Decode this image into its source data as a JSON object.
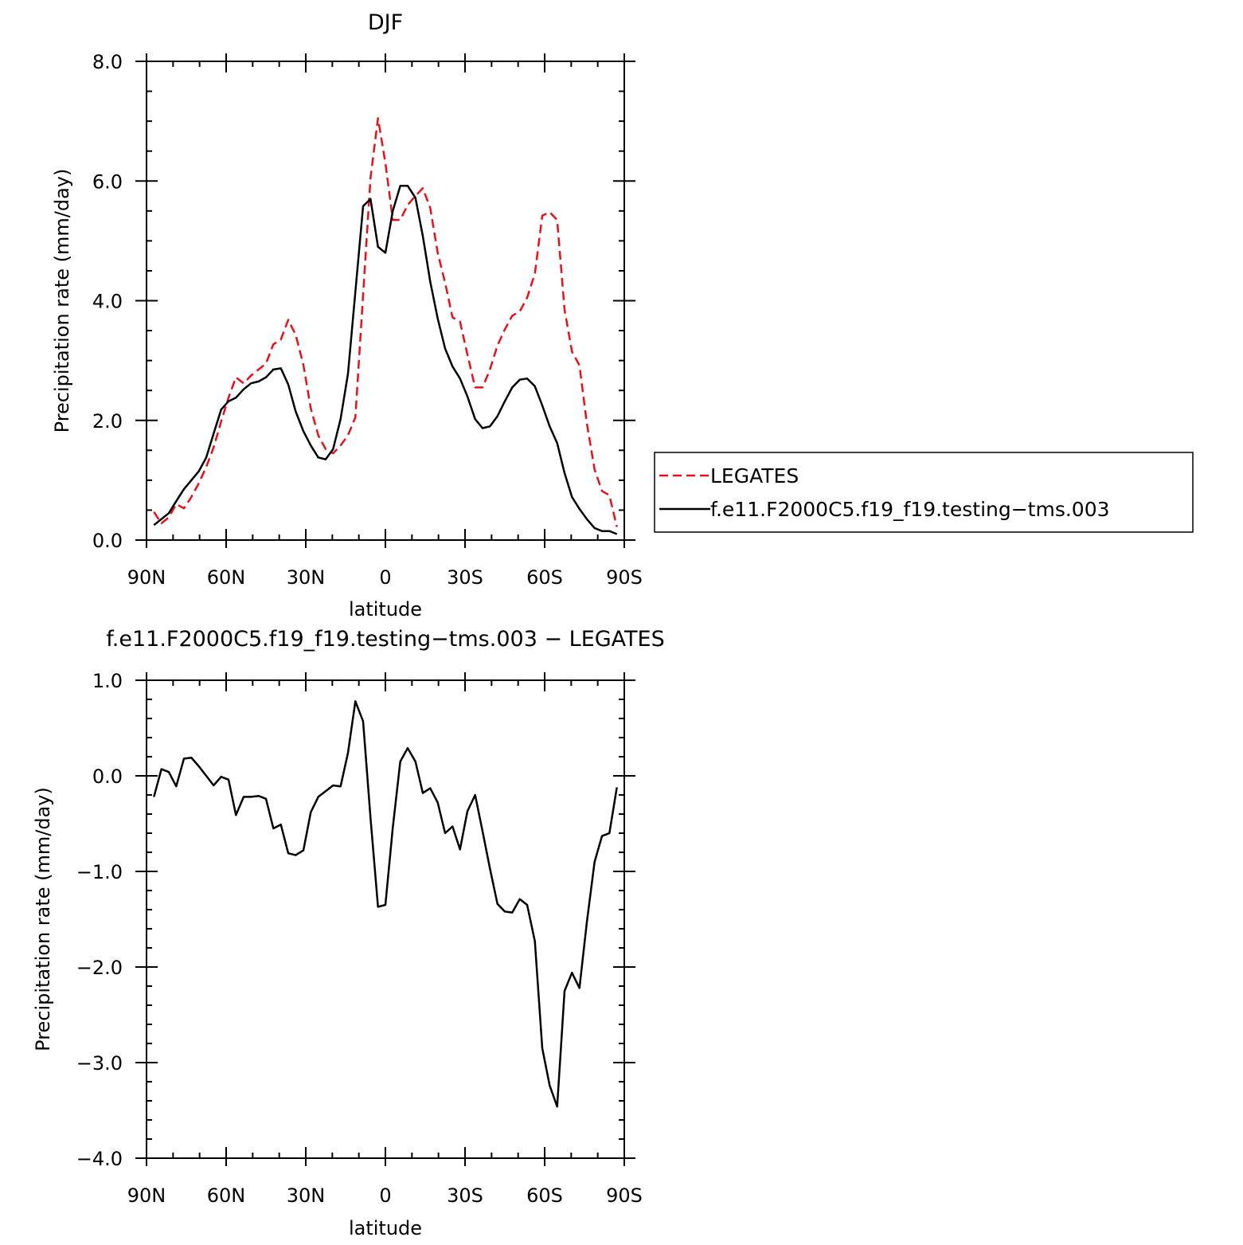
{
  "chart_data": [
    {
      "type": "line",
      "title": "DJF",
      "xlabel": "latitude",
      "ylabel": "Precipitation rate (mm/day)",
      "xlim": [
        -90,
        90
      ],
      "ylim": [
        0,
        8
      ],
      "x_ticks": [
        {
          "value": -90,
          "label": "90N"
        },
        {
          "value": -60,
          "label": "60N"
        },
        {
          "value": -30,
          "label": "30N"
        },
        {
          "value": 0,
          "label": "0"
        },
        {
          "value": 30,
          "label": "30S"
        },
        {
          "value": 60,
          "label": "60S"
        },
        {
          "value": 90,
          "label": "90S"
        }
      ],
      "y_ticks": [
        {
          "value": 0,
          "label": "0.0"
        },
        {
          "value": 2,
          "label": "2.0"
        },
        {
          "value": 4,
          "label": "4.0"
        },
        {
          "value": 6,
          "label": "6.0"
        },
        {
          "value": 8,
          "label": "8.0"
        }
      ],
      "grid": false,
      "legend": {
        "position": "right",
        "box": true
      },
      "series": [
        {
          "name": "LEGATES",
          "color": "#e8101a",
          "dash": "dashed",
          "x": [
            -87.2,
            -84.4,
            -81.6,
            -78.8,
            -75.9,
            -73.1,
            -70.3,
            -67.5,
            -64.7,
            -61.9,
            -59.1,
            -56.3,
            -53.4,
            -50.6,
            -47.8,
            -45.0,
            -42.2,
            -39.4,
            -36.6,
            -33.8,
            -30.9,
            -28.1,
            -25.3,
            -22.5,
            -19.7,
            -16.9,
            -14.1,
            -11.3,
            -8.4,
            -5.6,
            -2.8,
            0,
            2.8,
            5.6,
            8.4,
            11.3,
            14.1,
            16.9,
            19.7,
            22.5,
            25.3,
            28.1,
            30.9,
            33.8,
            36.6,
            39.4,
            42.2,
            45.0,
            47.8,
            50.6,
            53.4,
            56.3,
            59.1,
            61.9,
            64.7,
            67.5,
            70.3,
            73.1,
            75.9,
            78.8,
            81.6,
            84.4,
            87.2
          ],
          "values": [
            0.47,
            0.28,
            0.38,
            0.6,
            0.53,
            0.72,
            0.95,
            1.22,
            1.55,
            1.98,
            2.38,
            2.72,
            2.62,
            2.75,
            2.85,
            2.95,
            3.27,
            3.35,
            3.68,
            3.43,
            2.93,
            2.2,
            1.75,
            1.52,
            1.45,
            1.58,
            1.75,
            2.05,
            4.1,
            6.05,
            7.05,
            6.3,
            5.35,
            5.35,
            5.6,
            5.75,
            5.88,
            5.55,
            4.8,
            4.3,
            3.72,
            3.65,
            3.1,
            2.55,
            2.55,
            2.85,
            3.25,
            3.52,
            3.75,
            3.82,
            4.05,
            4.45,
            5.42,
            5.48,
            5.35,
            3.85,
            3.15,
            2.92,
            1.95,
            1.18,
            0.82,
            0.75,
            0.22
          ]
        },
        {
          "name": "f.e11.F2000C5.f19_f19.testing−tms.003",
          "color": "#000000",
          "dash": "solid",
          "x": [
            -87.2,
            -84.4,
            -81.6,
            -78.8,
            -75.9,
            -73.1,
            -70.3,
            -67.5,
            -64.7,
            -61.9,
            -59.1,
            -56.3,
            -53.4,
            -50.6,
            -47.8,
            -45.0,
            -42.2,
            -39.4,
            -36.6,
            -33.8,
            -30.9,
            -28.1,
            -25.3,
            -22.5,
            -19.7,
            -16.9,
            -14.1,
            -11.3,
            -8.4,
            -5.6,
            -2.8,
            0,
            2.8,
            5.6,
            8.4,
            11.3,
            14.1,
            16.9,
            19.7,
            22.5,
            25.3,
            28.1,
            30.9,
            33.8,
            36.6,
            39.4,
            42.2,
            45.0,
            47.8,
            50.6,
            53.4,
            56.3,
            59.1,
            61.9,
            64.7,
            67.5,
            70.3,
            73.1,
            75.9,
            78.8,
            81.6,
            84.4,
            87.2
          ],
          "values": [
            0.25,
            0.35,
            0.45,
            0.65,
            0.85,
            1.0,
            1.15,
            1.38,
            1.78,
            2.18,
            2.32,
            2.38,
            2.52,
            2.62,
            2.65,
            2.72,
            2.85,
            2.87,
            2.6,
            2.15,
            1.82,
            1.58,
            1.38,
            1.35,
            1.52,
            2.02,
            2.78,
            4.15,
            5.58,
            5.7,
            4.9,
            4.8,
            5.5,
            5.92,
            5.92,
            5.72,
            5.08,
            4.32,
            3.7,
            3.2,
            2.9,
            2.7,
            2.4,
            2.02,
            1.87,
            1.9,
            2.07,
            2.32,
            2.55,
            2.68,
            2.7,
            2.57,
            2.25,
            1.9,
            1.62,
            1.12,
            0.72,
            0.52,
            0.35,
            0.2,
            0.15,
            0.15,
            0.1
          ]
        }
      ]
    },
    {
      "type": "line",
      "title": "f.e11.F2000C5.f19_f19.testing−tms.003 − LEGATES",
      "xlabel": "latitude",
      "ylabel": "Precipitation rate (mm/day)",
      "xlim": [
        -90,
        90
      ],
      "ylim": [
        -4,
        1
      ],
      "x_ticks": [
        {
          "value": -90,
          "label": "90N"
        },
        {
          "value": -60,
          "label": "60N"
        },
        {
          "value": -30,
          "label": "30N"
        },
        {
          "value": 0,
          "label": "0"
        },
        {
          "value": 30,
          "label": "30S"
        },
        {
          "value": 60,
          "label": "60S"
        },
        {
          "value": 90,
          "label": "90S"
        }
      ],
      "y_ticks": [
        {
          "value": -4,
          "label": "−4.0"
        },
        {
          "value": -3,
          "label": "−3.0"
        },
        {
          "value": -2,
          "label": "−2.0"
        },
        {
          "value": -1,
          "label": "−1.0"
        },
        {
          "value": 0,
          "label": "0.0"
        },
        {
          "value": 1,
          "label": "1.0"
        }
      ],
      "grid": false,
      "series": [
        {
          "color": "#000000",
          "dash": "solid",
          "x": [
            -87.2,
            -84.4,
            -81.6,
            -78.8,
            -75.9,
            -73.1,
            -70.3,
            -67.5,
            -64.7,
            -61.9,
            -59.1,
            -56.3,
            -53.4,
            -50.6,
            -47.8,
            -45.0,
            -42.2,
            -39.4,
            -36.6,
            -33.8,
            -30.9,
            -28.1,
            -25.3,
            -22.5,
            -19.7,
            -16.9,
            -14.1,
            -11.3,
            -8.4,
            -5.6,
            -2.8,
            0,
            2.8,
            5.6,
            8.4,
            11.3,
            14.1,
            16.9,
            19.7,
            22.5,
            25.3,
            28.1,
            30.9,
            33.8,
            36.6,
            39.4,
            42.2,
            45.0,
            47.8,
            50.6,
            53.4,
            56.3,
            59.1,
            61.9,
            64.7,
            67.5,
            70.3,
            73.1,
            75.9,
            78.8,
            81.6,
            84.4,
            87.2
          ],
          "values": [
            -0.22,
            0.07,
            0.04,
            -0.11,
            0.18,
            0.19,
            0.1,
            0.0,
            -0.1,
            -0.01,
            -0.04,
            -0.41,
            -0.22,
            -0.22,
            -0.21,
            -0.24,
            -0.55,
            -0.51,
            -0.81,
            -0.83,
            -0.78,
            -0.38,
            -0.22,
            -0.16,
            -0.1,
            -0.11,
            0.24,
            0.78,
            0.57,
            -0.44,
            -1.37,
            -1.35,
            -0.54,
            0.15,
            0.29,
            0.15,
            -0.18,
            -0.13,
            -0.28,
            -0.6,
            -0.53,
            -0.77,
            -0.37,
            -0.2,
            -0.58,
            -0.97,
            -1.34,
            -1.42,
            -1.43,
            -1.29,
            -1.35,
            -1.73,
            -2.85,
            -3.24,
            -3.46,
            -2.25,
            -2.06,
            -2.22,
            -1.53,
            -0.9,
            -0.63,
            -0.6,
            -0.12
          ]
        }
      ]
    }
  ]
}
